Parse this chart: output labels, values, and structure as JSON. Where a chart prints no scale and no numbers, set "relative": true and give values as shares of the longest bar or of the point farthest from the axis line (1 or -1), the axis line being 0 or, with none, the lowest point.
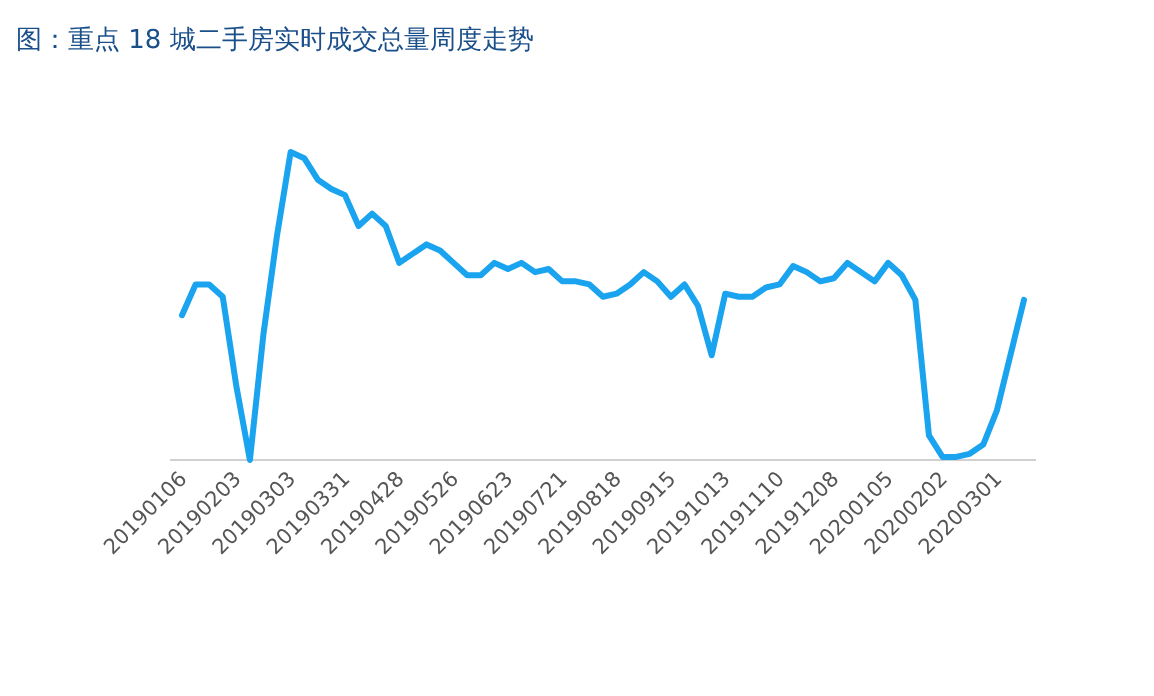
{
  "chart_data": {
    "type": "line",
    "title": "图：重点 18 城二手房实时成交总量周度走势",
    "relative": true,
    "marker": "none",
    "categories": [
      "20190106",
      null,
      null,
      null,
      "20190203",
      null,
      null,
      null,
      "20190303",
      null,
      null,
      null,
      "20190331",
      null,
      null,
      null,
      "20190428",
      null,
      null,
      null,
      "20190526",
      null,
      null,
      null,
      "20190623",
      null,
      null,
      null,
      "20190721",
      null,
      null,
      null,
      "20190818",
      null,
      null,
      null,
      "20190915",
      null,
      null,
      null,
      "20191013",
      null,
      null,
      null,
      "20191110",
      null,
      null,
      null,
      "20191208",
      null,
      null,
      null,
      "20200105",
      null,
      null,
      null,
      "20200202",
      null,
      null,
      null,
      "20200301",
      null,
      null
    ],
    "series": [
      {
        "color": "#1aa3ee",
        "values": [
          0.47,
          0.57,
          0.57,
          0.53,
          0.24,
          0,
          0.41,
          0.73,
          1,
          0.98,
          0.91,
          0.88,
          0.86,
          0.76,
          0.8,
          0.76,
          0.64,
          0.67,
          0.7,
          0.68,
          0.64,
          0.6,
          0.6,
          0.64,
          0.62,
          0.64,
          0.61,
          0.62,
          0.58,
          0.58,
          0.57,
          0.53,
          0.54,
          0.57,
          0.61,
          0.58,
          0.53,
          0.57,
          0.5,
          0.34,
          0.54,
          0.53,
          0.53,
          0.56,
          0.57,
          0.63,
          0.61,
          0.58,
          0.59,
          0.64,
          0.61,
          0.58,
          0.64,
          0.6,
          0.52,
          0.08,
          0.01,
          0.01,
          0.02,
          0.05,
          0.16,
          0.34,
          0.52
        ]
      }
    ]
  }
}
